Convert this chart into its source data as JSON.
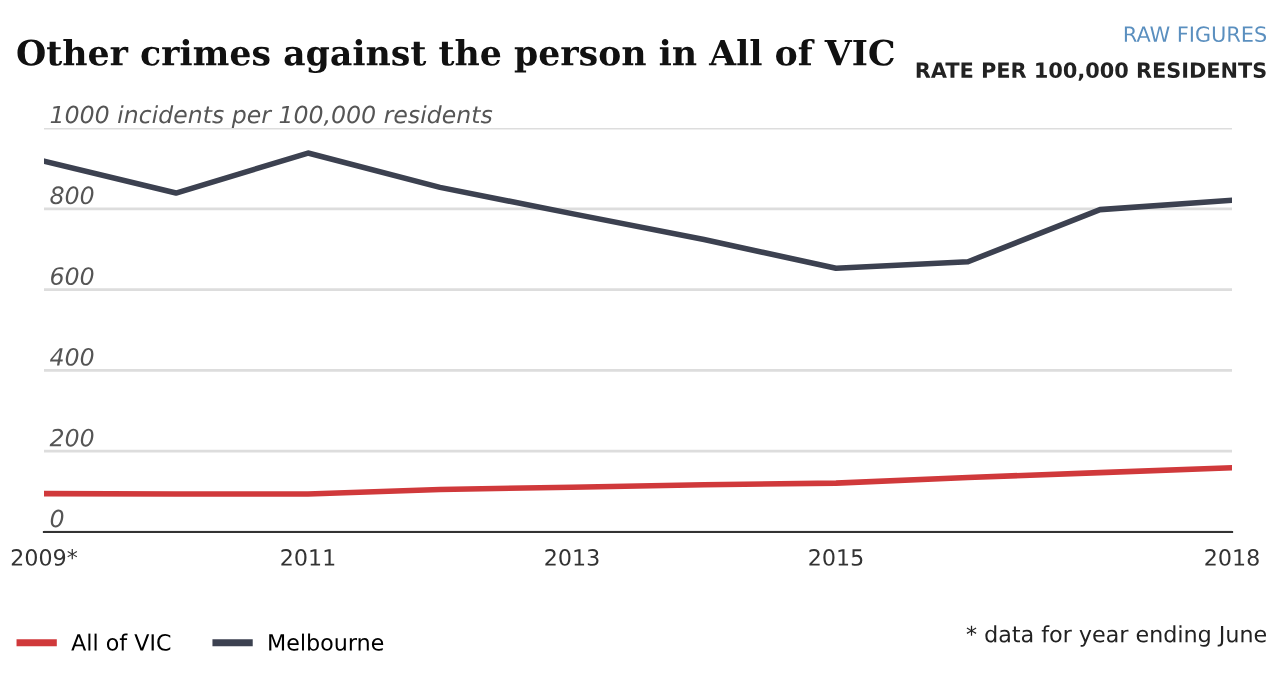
{
  "chart_data": {
    "type": "line",
    "title": "Other crimes against the person in All of VIC",
    "annotations": [
      "RAW FIGURES",
      "RATE PER 100,000 RESIDENTS",
      "* data for year ending June"
    ],
    "x": [
      2009,
      2010,
      2011,
      2012,
      2013,
      2014,
      2015,
      2016,
      2017,
      2018
    ],
    "series": [
      {
        "name": "All of VIC",
        "color": "#d0393b",
        "values": [
          95,
          94,
          94,
          105,
          111,
          117,
          121,
          135,
          147,
          159
        ]
      },
      {
        "name": "Melbourne",
        "color": "#3c4150",
        "values": [
          918,
          839,
          938,
          853,
          788,
          724,
          653,
          669,
          798,
          821
        ]
      }
    ],
    "xlim": [
      2009,
      2018
    ],
    "xticks": [
      {
        "value": 2009,
        "label": "2009*"
      },
      2011,
      2013,
      2015,
      2018
    ],
    "ylim": [
      0,
      1000
    ],
    "yticks": [
      0,
      200,
      400,
      600,
      800,
      {
        "value": 1000,
        "label": "1000 incidents per 100,000 residents"
      }
    ],
    "grid": "y",
    "legend": "bottom left",
    "marker": "none",
    "line_style": "solid"
  }
}
